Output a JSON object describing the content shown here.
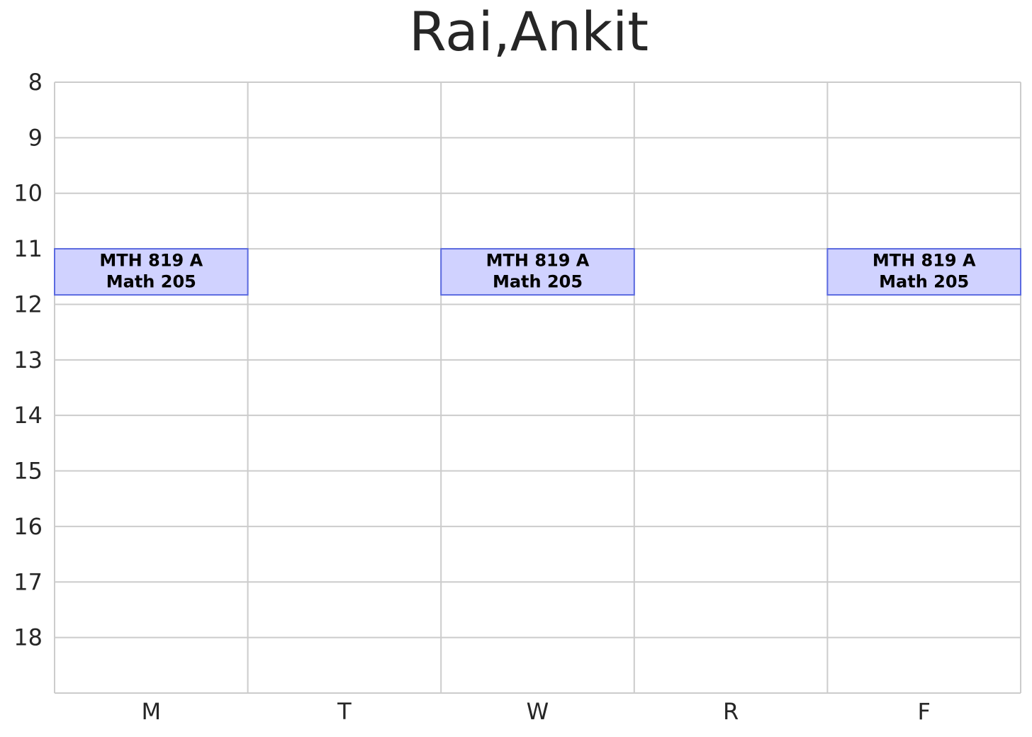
{
  "chart_data": {
    "type": "schedule",
    "title": "Rai,Ankit",
    "categories": [
      "M",
      "T",
      "W",
      "R",
      "F"
    ],
    "ylim": [
      19,
      8
    ],
    "yticks": [
      8,
      9,
      10,
      11,
      12,
      13,
      14,
      15,
      16,
      17,
      18
    ],
    "grid": true,
    "fill": "#d0d2ff",
    "edge": "#5b6ae0",
    "events": [
      {
        "day": 0,
        "start": 11,
        "end": 11.83,
        "course": "MTH 819 A",
        "room": "Math 205"
      },
      {
        "day": 2,
        "start": 11,
        "end": 11.83,
        "course": "MTH 819 A",
        "room": "Math 205"
      },
      {
        "day": 4,
        "start": 11,
        "end": 11.83,
        "course": "MTH 819 A",
        "room": "Math 205"
      }
    ]
  }
}
